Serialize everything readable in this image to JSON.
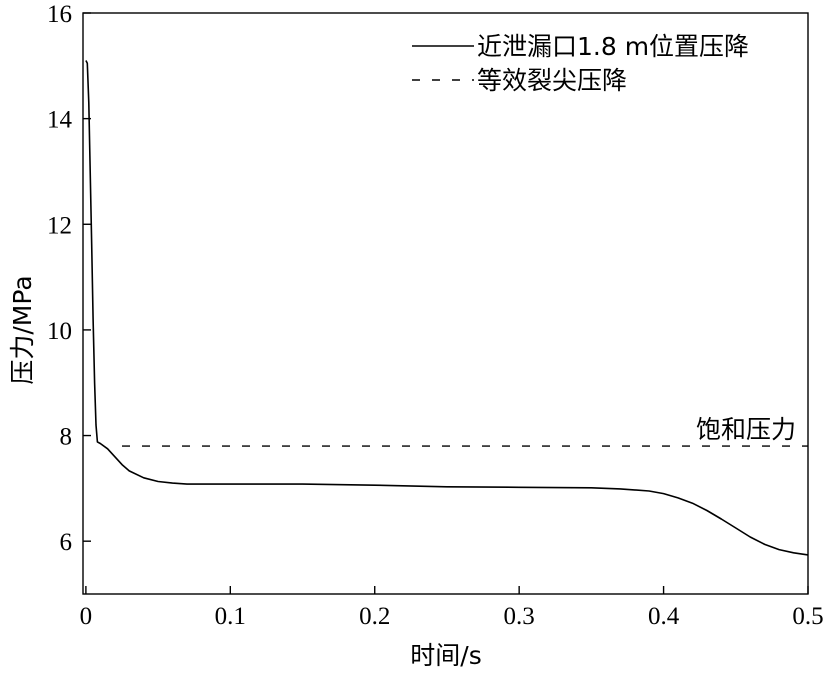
{
  "chart_data": {
    "type": "line",
    "xlabel": "时间/s",
    "ylabel": "压力/MPa",
    "xlim": [
      -0.002,
      0.5
    ],
    "ylim": [
      5,
      16
    ],
    "xticks": [
      0,
      0.1,
      0.2,
      0.3,
      0.4,
      0.5
    ],
    "xtick_labels": [
      "0",
      "0.1",
      "0.2",
      "0.3",
      "0.4",
      "0.5"
    ],
    "yticks": [
      6,
      8,
      10,
      12,
      14,
      16
    ],
    "ytick_labels": [
      "6",
      "8",
      "10",
      "12",
      "14",
      "16"
    ],
    "grid": false,
    "legend_position": "top-right",
    "series": [
      {
        "name": "近泄漏口1.8 m位置压降",
        "style": "solid",
        "color": "#000000",
        "x": [
          0.0,
          0.001,
          0.002,
          0.003,
          0.004,
          0.005,
          0.006,
          0.007,
          0.008,
          0.01,
          0.015,
          0.02,
          0.025,
          0.03,
          0.04,
          0.05,
          0.06,
          0.07,
          0.1,
          0.15,
          0.2,
          0.25,
          0.3,
          0.35,
          0.37,
          0.39,
          0.4,
          0.41,
          0.42,
          0.43,
          0.44,
          0.45,
          0.46,
          0.47,
          0.48,
          0.49,
          0.5
        ],
        "y": [
          15.1,
          15.05,
          14.3,
          13.0,
          11.6,
          10.2,
          9.0,
          8.2,
          7.88,
          7.85,
          7.75,
          7.6,
          7.45,
          7.33,
          7.2,
          7.13,
          7.1,
          7.08,
          7.08,
          7.08,
          7.06,
          7.03,
          7.02,
          7.01,
          6.99,
          6.95,
          6.9,
          6.82,
          6.72,
          6.58,
          6.42,
          6.25,
          6.08,
          5.94,
          5.84,
          5.78,
          5.74
        ]
      },
      {
        "name": "等效裂尖压降",
        "style": "dashed",
        "color": "#000000",
        "x": [
          0.025,
          0.5
        ],
        "y": [
          7.8,
          7.8
        ]
      }
    ],
    "annotations": [
      {
        "text": "饱和压力",
        "x": 0.487,
        "y": 8.1
      }
    ]
  }
}
